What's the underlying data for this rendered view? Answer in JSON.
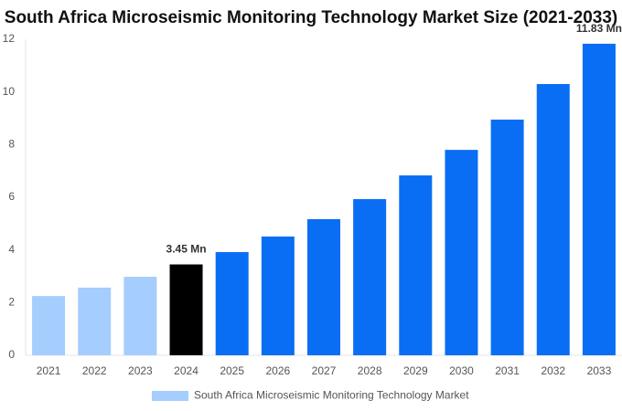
{
  "chart_data": {
    "type": "bar",
    "title": "South Africa Microseismic Monitoring Technology Market Size (2021-2033)",
    "categories": [
      "2021",
      "2022",
      "2023",
      "2024",
      "2025",
      "2026",
      "2027",
      "2028",
      "2029",
      "2030",
      "2031",
      "2032",
      "2033"
    ],
    "series": [
      {
        "name": "South Africa Microseismic Monitoring Technology Market",
        "color": "#a5cdfe",
        "values": [
          2.25,
          2.57,
          2.98,
          3.45,
          3.92,
          4.51,
          5.17,
          5.93,
          6.83,
          7.8,
          8.95,
          10.3,
          11.83
        ],
        "value_labels": [
          null,
          null,
          null,
          "3.45 Mn",
          null,
          null,
          null,
          null,
          null,
          null,
          null,
          null,
          "11.83 Mn"
        ],
        "colors": [
          "#a5cdfe",
          "#a5cdfe",
          "#a5cdfe",
          "#000000",
          "#0a6ef5",
          "#0a6ef5",
          "#0a6ef5",
          "#0a6ef5",
          "#0a6ef5",
          "#0a6ef5",
          "#0a6ef5",
          "#0a6ef5",
          "#0a6ef5"
        ]
      }
    ],
    "ylim": [
      0,
      12
    ],
    "yticks": [
      0,
      2,
      4,
      6,
      8,
      10,
      12
    ],
    "grid": false,
    "legend": "bottom"
  }
}
